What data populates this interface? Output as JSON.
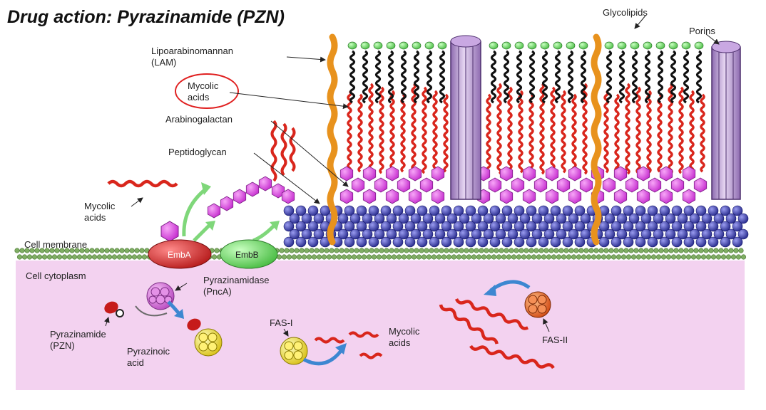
{
  "title": "Drug action: Pyrazinamide (PZN)",
  "labels": {
    "glycolipids": "Glycolipids",
    "porins": "Porins",
    "lam_1": "Lipoarabinomannan",
    "lam_2": "(LAM)",
    "mycolic_top_1": "Mycolic",
    "mycolic_top_2": "acids",
    "arabinogalactan": "Arabinogalactan",
    "peptidoglycan": "Peptidoglycan",
    "mycolic_left_1": "Mycolic",
    "mycolic_left_2": "acids",
    "cell_membrane": "Cell membrane",
    "emba": "EmbA",
    "embb": "EmbB",
    "cell_cytoplasm": "Cell cytoplasm",
    "pyrazinamidase_1": "Pyrazinamidase",
    "pyrazinamidase_2": "(PncA)",
    "pyrazinamide_1": "Pyrazinamide",
    "pyrazinamide_2": "(PZN)",
    "pyrazinoic_1": "Pyrazinoic",
    "pyrazinoic_2": "acid",
    "fas1": "FAS-I",
    "mycolic_cyto_1": "Mycolic",
    "mycolic_cyto_2": "acids",
    "fas2": "FAS-II"
  },
  "colors": {
    "cytoplasm": "#f3d2f0",
    "membrane": "#7fae63",
    "mycolic": "#d9261c",
    "glycolipid_head": "#5fd35a",
    "lam": "#e8921d",
    "arabinogalactan": "#d84de0",
    "peptidoglycan": "#3b3fa8",
    "porin": "#b99ad4",
    "emba": "#d23a3a",
    "embb": "#6fd86a",
    "pncA": "#d774dc",
    "pyrazinoic": "#f4e33c",
    "fas2": "#e5682a",
    "arrow_green": "#7fd77a",
    "arrow_blue": "#3d87d1",
    "highlight": "#e02020"
  }
}
